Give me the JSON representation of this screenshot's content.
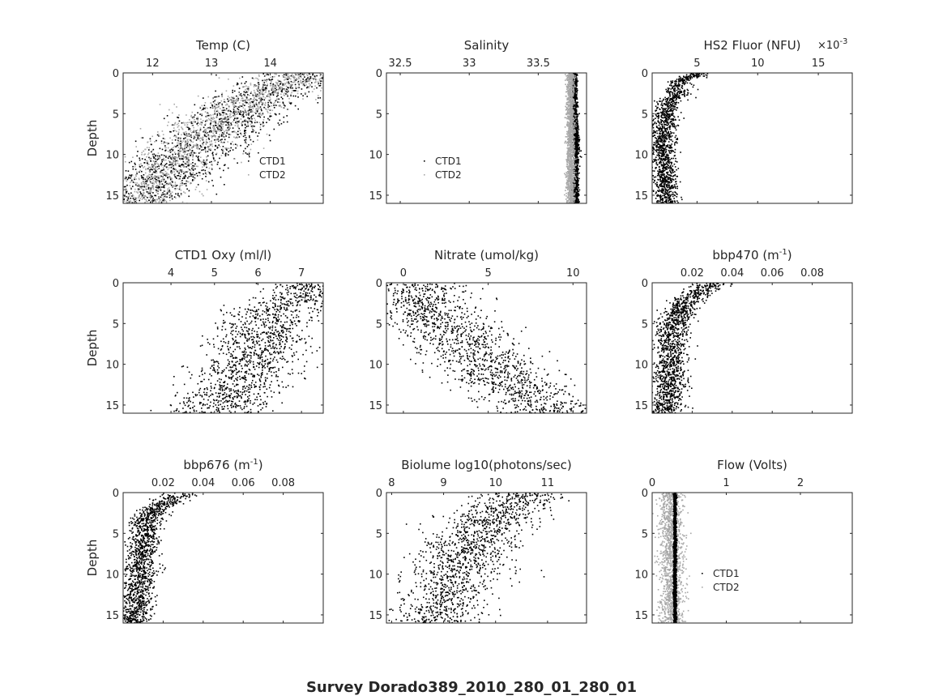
{
  "figure": {
    "suptitle": "Survey Dorado389_2010_280_01_280_01",
    "ylabel": "Depth",
    "y_axis_reversed": true,
    "x_axis_location": "top",
    "marker_style": "dots",
    "colors": {
      "ctd1": "#000000",
      "ctd2": "#a8a8a8",
      "axes": "#262626"
    }
  },
  "chart_data": [
    {
      "type": "scatter",
      "title": "Temp (C)",
      "xlim": [
        11.5,
        14.9
      ],
      "ylim": [
        0,
        16
      ],
      "xticks": [
        12,
        13,
        14
      ],
      "xtick_labels": [
        "12",
        "13",
        "14"
      ],
      "yticks": [
        0,
        5,
        10,
        15
      ],
      "ytick_labels": [
        "0",
        "5",
        "10",
        "15"
      ],
      "show_ylabel": true,
      "legend": {
        "entries": [
          "CTD1",
          "CTD2"
        ],
        "position": "lower-right"
      },
      "series": [
        {
          "name": "CTD1",
          "color": "#000000",
          "profile": [
            [
              0,
              14.7
            ],
            [
              2,
              14.0
            ],
            [
              4,
              13.5
            ],
            [
              6,
              13.2
            ],
            [
              8,
              12.9
            ],
            [
              10,
              12.6
            ],
            [
              12,
              12.2
            ],
            [
              14,
              11.9
            ],
            [
              16,
              11.6
            ]
          ],
          "spread": 0.45
        },
        {
          "name": "CTD2",
          "color": "#a8a8a8",
          "profile": [
            [
              0,
              14.6
            ],
            [
              2.5,
              13.9
            ],
            [
              4,
              13.4
            ],
            [
              6,
              13.1
            ],
            [
              8,
              12.8
            ],
            [
              10,
              12.5
            ],
            [
              12,
              12.2
            ],
            [
              14,
              11.9
            ],
            [
              16,
              11.7
            ]
          ],
          "spread": 0.4
        }
      ]
    },
    {
      "type": "scatter",
      "title": "Salinity",
      "xlim": [
        32.4,
        33.85
      ],
      "ylim": [
        0,
        16
      ],
      "xticks": [
        32.5,
        33,
        33.5
      ],
      "xtick_labels": [
        "32.5",
        "33",
        "33.5"
      ],
      "yticks": [
        0,
        5,
        10,
        15
      ],
      "ytick_labels": [
        "0",
        "5",
        "10",
        "15"
      ],
      "show_ylabel": false,
      "legend": {
        "entries": [
          "CTD1",
          "CTD2"
        ],
        "position": "lower-left"
      },
      "series": [
        {
          "name": "CTD1",
          "color": "#000000",
          "profile": [
            [
              0,
              33.76
            ],
            [
              2,
              33.76
            ],
            [
              4,
              33.76
            ],
            [
              6,
              33.76
            ],
            [
              8,
              33.77
            ],
            [
              10,
              33.77
            ],
            [
              12,
              33.77
            ],
            [
              14,
              33.77
            ],
            [
              16,
              33.77
            ]
          ],
          "spread": 0.01
        },
        {
          "name": "CTD2",
          "color": "#a8a8a8",
          "profile": [
            [
              0,
              33.73
            ],
            [
              2,
              33.73
            ],
            [
              4,
              33.73
            ],
            [
              6,
              33.73
            ],
            [
              8,
              33.73
            ],
            [
              10,
              33.73
            ],
            [
              12,
              33.73
            ],
            [
              14,
              33.73
            ],
            [
              16,
              33.73
            ]
          ],
          "spread": 0.015
        }
      ]
    },
    {
      "type": "scatter",
      "title": "HS2 Fluor (NFU)",
      "x_multiplier_label": "×10",
      "x_multiplier_exponent": "-3",
      "xlim": [
        0.0013,
        0.0178
      ],
      "ylim": [
        0,
        16
      ],
      "xticks": [
        0.005,
        0.01,
        0.015
      ],
      "xtick_labels": [
        "5",
        "10",
        "15"
      ],
      "yticks": [
        0,
        5,
        10,
        15
      ],
      "ytick_labels": [
        "0",
        "5",
        "10",
        "15"
      ],
      "show_ylabel": false,
      "series": [
        {
          "name": "HS2",
          "color": "#000000",
          "profile": [
            [
              0,
              0.005
            ],
            [
              1,
              0.0035
            ],
            [
              2.5,
              0.0033
            ],
            [
              4,
              0.0025
            ],
            [
              6,
              0.0022
            ],
            [
              8,
              0.0021
            ],
            [
              10,
              0.0022
            ],
            [
              12,
              0.0023
            ],
            [
              14,
              0.0024
            ],
            [
              16,
              0.0024
            ]
          ],
          "spread": 0.0005
        }
      ]
    },
    {
      "type": "scatter",
      "title": "CTD1 Oxy (ml/l)",
      "xlim": [
        2.9,
        7.5
      ],
      "ylim": [
        0,
        16
      ],
      "xticks": [
        4,
        5,
        6,
        7
      ],
      "xtick_labels": [
        "4",
        "5",
        "6",
        "7"
      ],
      "yticks": [
        0,
        5,
        10,
        15
      ],
      "ytick_labels": [
        "0",
        "5",
        "10",
        "15"
      ],
      "show_ylabel": true,
      "series": [
        {
          "name": "CTD1",
          "color": "#000000",
          "profile": [
            [
              0,
              7.2
            ],
            [
              2,
              7.0
            ],
            [
              3,
              6.4
            ],
            [
              6,
              6.1
            ],
            [
              9,
              5.9
            ],
            [
              12,
              5.6
            ],
            [
              14,
              5.3
            ],
            [
              16,
              5.0
            ]
          ],
          "spread": 0.55
        }
      ]
    },
    {
      "type": "scatter",
      "title": "Nitrate (umol/kg)",
      "xlim": [
        -1,
        10.8
      ],
      "ylim": [
        0,
        16
      ],
      "xticks": [
        0,
        5,
        10
      ],
      "xtick_labels": [
        "0",
        "5",
        "10"
      ],
      "yticks": [
        0,
        5,
        10,
        15
      ],
      "ytick_labels": [
        "0",
        "5",
        "10",
        "15"
      ],
      "show_ylabel": false,
      "series": [
        {
          "name": "Nitrate",
          "color": "#000000",
          "profile": [
            [
              0,
              0.5
            ],
            [
              3,
              1.0
            ],
            [
              6,
              3.0
            ],
            [
              9,
              4.5
            ],
            [
              12,
              6.0
            ],
            [
              14,
              7.5
            ],
            [
              16,
              8.5
            ]
          ],
          "spread": 1.6
        }
      ]
    },
    {
      "type": "scatter",
      "title": "bbp470 (m",
      "title_sup": "-1",
      "title_suffix": ")",
      "xlim": [
        0,
        0.1
      ],
      "ylim": [
        0,
        16
      ],
      "xticks": [
        0.02,
        0.04,
        0.06,
        0.08
      ],
      "xtick_labels": [
        "0.02",
        "0.04",
        "0.06",
        "0.08"
      ],
      "yticks": [
        0,
        5,
        10,
        15
      ],
      "ytick_labels": [
        "0",
        "5",
        "10",
        "15"
      ],
      "show_ylabel": false,
      "series": [
        {
          "name": "bbp470",
          "color": "#000000",
          "profile": [
            [
              0,
              0.03
            ],
            [
              2,
              0.018
            ],
            [
              3,
              0.014
            ],
            [
              6,
              0.01
            ],
            [
              10,
              0.009
            ],
            [
              14,
              0.008
            ],
            [
              16,
              0.006
            ]
          ],
          "spread": 0.004
        }
      ]
    },
    {
      "type": "scatter",
      "title": "bbp676 (m",
      "title_sup": "-1",
      "title_suffix": ")",
      "xlim": [
        0,
        0.1
      ],
      "ylim": [
        0,
        16
      ],
      "xticks": [
        0.02,
        0.04,
        0.06,
        0.08
      ],
      "xtick_labels": [
        "0.02",
        "0.04",
        "0.06",
        "0.08"
      ],
      "yticks": [
        0,
        5,
        10,
        15
      ],
      "ytick_labels": [
        "0",
        "5",
        "10",
        "15"
      ],
      "show_ylabel": true,
      "series": [
        {
          "name": "bbp676",
          "color": "#000000",
          "profile": [
            [
              0,
              0.03
            ],
            [
              2,
              0.016
            ],
            [
              3,
              0.012
            ],
            [
              6,
              0.009
            ],
            [
              10,
              0.008
            ],
            [
              14,
              0.006
            ],
            [
              16,
              0.004
            ]
          ],
          "spread": 0.004
        }
      ]
    },
    {
      "type": "scatter",
      "title": "Biolume log10(photons/sec)",
      "xlim": [
        7.9,
        11.75
      ],
      "ylim": [
        0,
        16
      ],
      "xticks": [
        8,
        9,
        10,
        11
      ],
      "xtick_labels": [
        "8",
        "9",
        "10",
        "11"
      ],
      "yticks": [
        0,
        5,
        10,
        15
      ],
      "ytick_labels": [
        "0",
        "5",
        "10",
        "15"
      ],
      "show_ylabel": false,
      "series": [
        {
          "name": "Biolume",
          "color": "#000000",
          "profile": [
            [
              0,
              10.6
            ],
            [
              3,
              9.9
            ],
            [
              6,
              9.5
            ],
            [
              9,
              9.3
            ],
            [
              12,
              9.1
            ],
            [
              15,
              8.9
            ],
            [
              16,
              8.9
            ]
          ],
          "spread": 0.45
        }
      ]
    },
    {
      "type": "scatter",
      "title": "Flow (Volts)",
      "xlim": [
        0,
        2.7
      ],
      "ylim": [
        0,
        16
      ],
      "xticks": [
        0,
        1,
        2
      ],
      "xtick_labels": [
        "0",
        "1",
        "2"
      ],
      "yticks": [
        0,
        5,
        10,
        15
      ],
      "ytick_labels": [
        "0",
        "5",
        "10",
        "15"
      ],
      "show_ylabel": false,
      "legend": {
        "entries": [
          "CTD1",
          "CTD2"
        ],
        "position": "lower-center"
      },
      "series": [
        {
          "name": "CTD2",
          "color": "#a8a8a8",
          "profile": [
            [
              0,
              0.25
            ],
            [
              4,
              0.25
            ],
            [
              8,
              0.25
            ],
            [
              12,
              0.26
            ],
            [
              16,
              0.26
            ]
          ],
          "spread": 0.08
        },
        {
          "name": "CTD1",
          "color": "#000000",
          "profile": [
            [
              0,
              0.3
            ],
            [
              8,
              0.3
            ],
            [
              16,
              0.3
            ]
          ],
          "spread": 0.01
        }
      ]
    }
  ]
}
